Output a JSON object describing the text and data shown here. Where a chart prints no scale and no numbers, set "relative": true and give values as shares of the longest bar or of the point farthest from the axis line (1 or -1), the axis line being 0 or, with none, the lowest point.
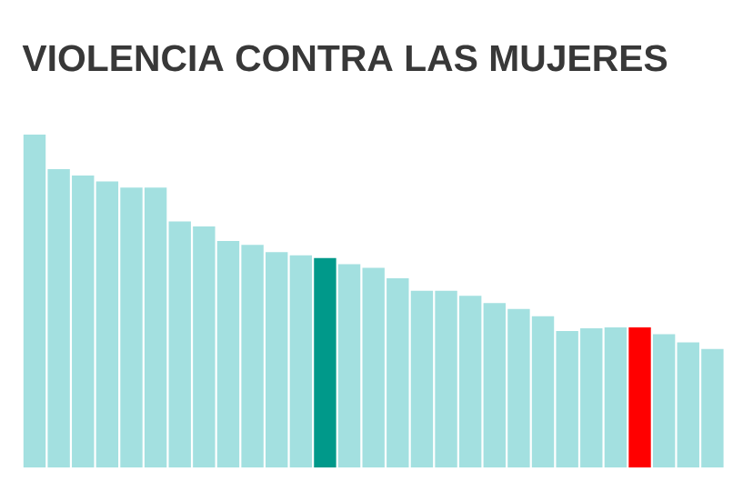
{
  "chart_data": {
    "type": "bar",
    "title": "VIOLENCIA CONTRA LAS MUJERES",
    "relative": true,
    "categories": [
      null,
      null,
      null,
      null,
      null,
      null,
      null,
      null,
      null,
      null,
      null,
      null,
      null,
      null,
      null,
      null,
      null,
      null,
      null,
      null,
      null,
      null,
      null,
      null,
      null,
      null,
      null,
      null,
      null
    ],
    "values": [
      1,
      0.896,
      0.877,
      0.859,
      0.841,
      0.841,
      0.739,
      0.724,
      0.68,
      0.669,
      0.647,
      0.637,
      0.629,
      0.611,
      0.6,
      0.568,
      0.531,
      0.531,
      0.516,
      0.494,
      0.476,
      0.454,
      0.41,
      0.418,
      0.421,
      0.421,
      0.4,
      0.376,
      0.356
    ],
    "colors": [
      "#a3e0e0",
      "#a3e0e0",
      "#a3e0e0",
      "#a3e0e0",
      "#a3e0e0",
      "#a3e0e0",
      "#a3e0e0",
      "#a3e0e0",
      "#a3e0e0",
      "#a3e0e0",
      "#a3e0e0",
      "#a3e0e0",
      "#00998a",
      "#a3e0e0",
      "#a3e0e0",
      "#a3e0e0",
      "#a3e0e0",
      "#a3e0e0",
      "#a3e0e0",
      "#a3e0e0",
      "#a3e0e0",
      "#a3e0e0",
      "#a3e0e0",
      "#a3e0e0",
      "#a3e0e0",
      "#ff0000",
      "#a3e0e0",
      "#a3e0e0",
      "#a3e0e0"
    ]
  }
}
